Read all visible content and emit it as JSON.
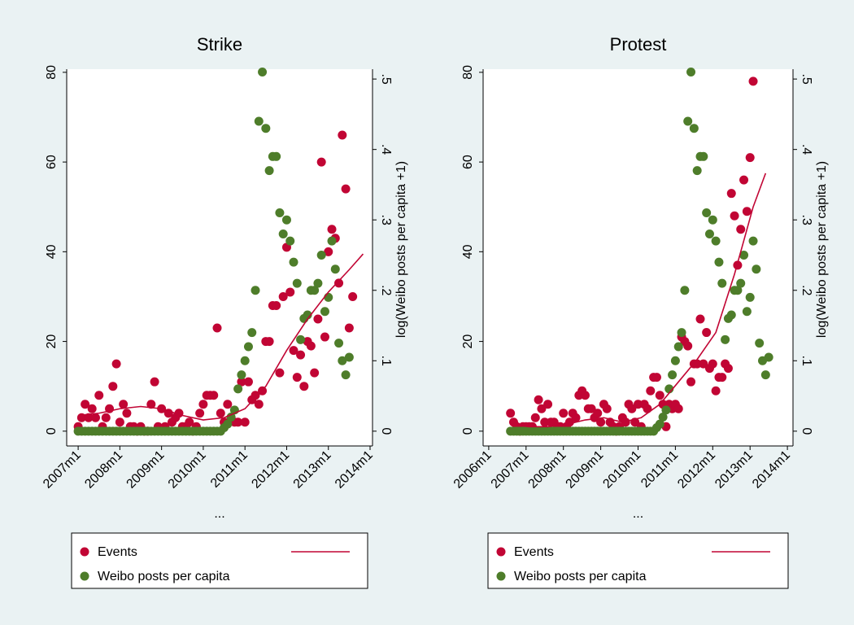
{
  "chart_data": [
    {
      "type": "scatter",
      "title": "Strike",
      "xlabel": "...",
      "y2label": "log(Weibo posts per capita +1)",
      "xlim": [
        560.7,
        648.7
      ],
      "ylim": [
        -3.3,
        80.7
      ],
      "y2lim": [
        -0.021,
        0.514
      ],
      "xticks": [
        {
          "value": 564,
          "label": "2007m1"
        },
        {
          "value": 576,
          "label": "2008m1"
        },
        {
          "value": 588,
          "label": "2009m1"
        },
        {
          "value": 600,
          "label": "2010m1"
        },
        {
          "value": 612,
          "label": "2011m1"
        },
        {
          "value": 624,
          "label": "2012m1"
        },
        {
          "value": 636,
          "label": "2013m1"
        },
        {
          "value": 648,
          "label": "2014m1"
        }
      ],
      "yticks": [
        0,
        20,
        40,
        60,
        80
      ],
      "y2ticks": [
        0,
        {
          "value": 0.1,
          "label": ".1"
        },
        {
          "value": 0.2,
          "label": ".2"
        },
        {
          "value": 0.3,
          "label": ".3"
        },
        {
          "value": 0.4,
          "label": ".4"
        },
        {
          "value": 0.5,
          "label": ".5"
        }
      ],
      "series": [
        {
          "name": "Events",
          "color": "#c10534",
          "x": [
            564,
            565,
            566,
            567,
            568,
            569,
            570,
            571,
            572,
            573,
            574,
            575,
            576,
            577,
            578,
            579,
            580,
            581,
            582,
            583,
            584,
            585,
            586,
            587,
            588,
            589,
            590,
            591,
            592,
            593,
            594,
            595,
            596,
            597,
            598,
            599,
            600,
            601,
            602,
            603,
            604,
            605,
            606,
            607,
            608,
            609,
            610,
            611,
            612,
            613,
            614,
            615,
            616,
            617,
            618,
            619,
            620,
            621,
            622,
            623,
            624,
            625,
            626,
            627,
            628,
            629,
            630,
            631,
            632,
            633,
            634,
            635,
            636,
            637,
            638,
            639,
            640,
            641,
            642,
            643
          ],
          "values": [
            1,
            3,
            6,
            3,
            5,
            3,
            8,
            1,
            3,
            5,
            10,
            15,
            2,
            6,
            4,
            1,
            1,
            0,
            1,
            0,
            0,
            6,
            11,
            1,
            5,
            1,
            4,
            2,
            3,
            4,
            1,
            1,
            2,
            0,
            1,
            4,
            6,
            8,
            8,
            8,
            23,
            4,
            2,
            6,
            3,
            2,
            2,
            11,
            2,
            11,
            7,
            8,
            6,
            9,
            20,
            20,
            28,
            28,
            13,
            30,
            41,
            31,
            18,
            12,
            17,
            10,
            20,
            19,
            13,
            25,
            60,
            21,
            40,
            45,
            43,
            33,
            66,
            54,
            23,
            30
          ]
        },
        {
          "name": "Weibo posts per capita",
          "color": "#4e7d2a",
          "axis": "y2",
          "x": [
            564,
            565,
            566,
            567,
            568,
            569,
            570,
            571,
            572,
            573,
            574,
            575,
            576,
            577,
            578,
            579,
            580,
            581,
            582,
            583,
            584,
            585,
            586,
            587,
            588,
            589,
            590,
            591,
            592,
            593,
            594,
            595,
            596,
            597,
            598,
            599,
            600,
            601,
            602,
            603,
            604,
            605,
            606,
            607,
            608,
            609,
            610,
            611,
            612,
            613,
            614,
            615,
            616,
            617,
            618,
            619,
            620,
            621,
            622,
            623,
            624,
            625,
            626,
            627,
            628,
            629,
            630,
            631,
            632,
            633,
            634,
            635,
            636,
            637,
            638,
            639,
            640,
            641,
            642
          ],
          "values": [
            0,
            0,
            0,
            0,
            0,
            0,
            0,
            0,
            0,
            0,
            0,
            0,
            0,
            0,
            0,
            0,
            0,
            0,
            0,
            0,
            0,
            0,
            0,
            0,
            0,
            0,
            0,
            0,
            0,
            0,
            0,
            0,
            0,
            0,
            0,
            0,
            0,
            0,
            0,
            0,
            0,
            0,
            0.005,
            0.01,
            0.02,
            0.03,
            0.06,
            0.08,
            0.1,
            0.12,
            0.14,
            0.2,
            0.44,
            0.51,
            0.43,
            0.37,
            0.39,
            0.39,
            0.31,
            0.28,
            0.3,
            0.27,
            0.24,
            0.21,
            0.13,
            0.16,
            0.165,
            0.2,
            0.2,
            0.21,
            0.25,
            0.17,
            0.19,
            0.27,
            0.23,
            0.125,
            0.1,
            0.08,
            0.105
          ]
        },
        {
          "kind": "line",
          "color": "#c10534",
          "x": [
            564,
            570,
            576,
            582,
            588,
            594,
            600,
            606,
            612,
            618,
            624,
            630,
            636,
            642,
            646
          ],
          "values": [
            3.5,
            4,
            5,
            5.5,
            5,
            3.5,
            2.5,
            3,
            5,
            10,
            18,
            25,
            31,
            36,
            39.5
          ]
        }
      ]
    },
    {
      "type": "scatter",
      "title": "Protest",
      "xlabel": "...",
      "y2label": "log(Weibo posts per capita +1)",
      "xlim": [
        550.2,
        649.8
      ],
      "ylim": [
        -3.3,
        80.7
      ],
      "y2lim": [
        -0.021,
        0.514
      ],
      "xticks": [
        {
          "value": 552,
          "label": "2006m1"
        },
        {
          "value": 564,
          "label": "2007m1"
        },
        {
          "value": 576,
          "label": "2008m1"
        },
        {
          "value": 588,
          "label": "2009m1"
        },
        {
          "value": 600,
          "label": "2010m1"
        },
        {
          "value": 612,
          "label": "2011m1"
        },
        {
          "value": 624,
          "label": "2012m1"
        },
        {
          "value": 636,
          "label": "2013m1"
        },
        {
          "value": 648,
          "label": "2014m1"
        }
      ],
      "yticks": [
        0,
        20,
        40,
        60,
        80
      ],
      "y2ticks": [
        0,
        {
          "value": 0.1,
          "label": ".1"
        },
        {
          "value": 0.2,
          "label": ".2"
        },
        {
          "value": 0.3,
          "label": ".3"
        },
        {
          "value": 0.4,
          "label": ".4"
        },
        {
          "value": 0.5,
          "label": ".5"
        }
      ],
      "series": [
        {
          "name": "Events",
          "color": "#c10534",
          "x": [
            559,
            560,
            561,
            562,
            563,
            564,
            565,
            566,
            567,
            568,
            569,
            570,
            571,
            572,
            573,
            574,
            575,
            576,
            577,
            578,
            579,
            580,
            581,
            582,
            583,
            584,
            585,
            586,
            587,
            588,
            589,
            590,
            591,
            592,
            593,
            594,
            595,
            596,
            597,
            598,
            599,
            600,
            601,
            602,
            603,
            604,
            605,
            606,
            607,
            608,
            609,
            610,
            611,
            612,
            613,
            614,
            615,
            616,
            617,
            618,
            619,
            620,
            621,
            622,
            623,
            624,
            625,
            626,
            627,
            628,
            629,
            630,
            631,
            632,
            633,
            634,
            635,
            636,
            637
          ],
          "values": [
            4,
            2,
            1,
            0,
            1,
            1,
            1,
            1,
            3,
            7,
            5,
            2,
            6,
            2,
            2,
            1,
            1,
            4,
            1,
            2,
            4,
            3,
            8,
            9,
            8,
            5,
            5,
            3,
            4,
            2,
            6,
            5,
            2,
            1,
            0,
            1,
            3,
            2,
            6,
            5,
            2,
            6,
            1,
            6,
            5,
            9,
            12,
            12,
            8,
            6,
            1,
            6,
            5,
            6,
            5,
            21,
            20,
            19,
            11,
            15,
            15,
            25,
            15,
            22,
            14,
            15,
            9,
            12,
            12,
            15,
            14,
            53,
            48,
            37,
            45,
            56,
            49,
            61,
            78
          ]
        },
        {
          "name": "Weibo posts per capita",
          "color": "#4e7d2a",
          "axis": "y2",
          "x": [
            559,
            560,
            561,
            562,
            563,
            564,
            565,
            566,
            567,
            568,
            569,
            570,
            571,
            572,
            573,
            574,
            575,
            576,
            577,
            578,
            579,
            580,
            581,
            582,
            583,
            584,
            585,
            586,
            587,
            588,
            589,
            590,
            591,
            592,
            593,
            594,
            595,
            596,
            597,
            598,
            599,
            600,
            601,
            602,
            603,
            604,
            605,
            606,
            607,
            608,
            609,
            610,
            611,
            612,
            613,
            614,
            615,
            616,
            617,
            618,
            619,
            620,
            621,
            622,
            623,
            624,
            625,
            626,
            627,
            628,
            629,
            630,
            631,
            632,
            633,
            634,
            635,
            636,
            637,
            638,
            639,
            640,
            641,
            642
          ],
          "values": [
            0,
            0,
            0,
            0,
            0,
            0,
            0,
            0,
            0,
            0,
            0,
            0,
            0,
            0,
            0,
            0,
            0,
            0,
            0,
            0,
            0,
            0,
            0,
            0,
            0,
            0,
            0,
            0,
            0,
            0,
            0,
            0,
            0,
            0,
            0,
            0,
            0,
            0,
            0,
            0,
            0,
            0,
            0,
            0,
            0,
            0,
            0,
            0.005,
            0.01,
            0.02,
            0.03,
            0.06,
            0.08,
            0.1,
            0.12,
            0.14,
            0.2,
            0.44,
            0.51,
            0.43,
            0.37,
            0.39,
            0.39,
            0.31,
            0.28,
            0.3,
            0.27,
            0.24,
            0.21,
            0.13,
            0.16,
            0.165,
            0.2,
            0.2,
            0.21,
            0.25,
            0.17,
            0.19,
            0.27,
            0.23,
            0.125,
            0.1,
            0.08,
            0.105
          ]
        },
        {
          "kind": "line",
          "color": "#c10534",
          "x": [
            559,
            565,
            571,
            577,
            583,
            589,
            595,
            601,
            607,
            613,
            619,
            625,
            631,
            637,
            641
          ],
          "values": [
            1.5,
            1,
            1,
            1.5,
            2.5,
            3,
            2,
            3,
            6,
            11,
            16,
            22,
            35,
            50,
            57.5
          ]
        }
      ]
    }
  ]
}
